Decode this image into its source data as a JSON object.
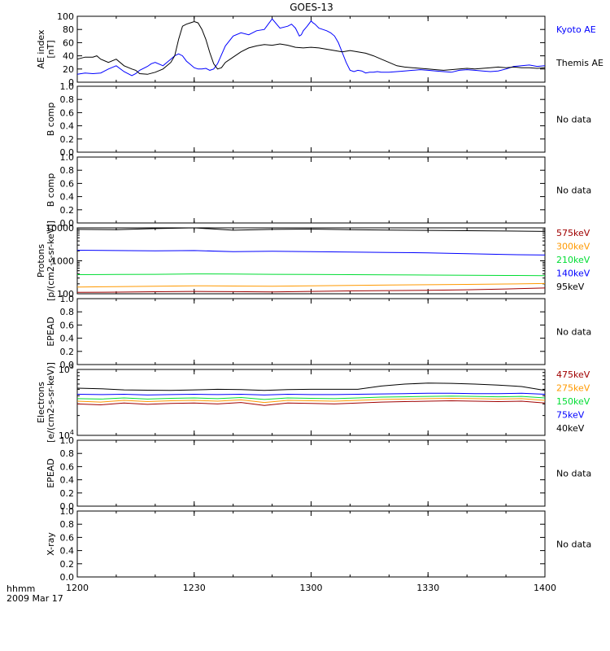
{
  "title": "GOES-13",
  "footer": {
    "time_label": "hhmm",
    "date_label": "2009 Mar 17"
  },
  "x_axis": {
    "ticks": [
      "1200",
      "1230",
      "1300",
      "1330",
      "1400"
    ],
    "tick_values": [
      0,
      30,
      60,
      90,
      120
    ],
    "range": [
      0,
      120
    ]
  },
  "chart_data": [
    {
      "type": "line",
      "panel": "ae",
      "ylabel": "AE index\n[nT]",
      "ylim": [
        0,
        100
      ],
      "yticks": [
        0,
        20,
        40,
        60,
        80,
        100
      ],
      "yscale": "linear",
      "x_units": "minutes after 1200",
      "series": [
        {
          "name": "Kyoto AE",
          "color": "#0000ff",
          "x": [
            0,
            2,
            4,
            6,
            8,
            10,
            12,
            14,
            15,
            16,
            18,
            19,
            20,
            22,
            23,
            24,
            25,
            26,
            27,
            28,
            29,
            30,
            31,
            32,
            33,
            34,
            35,
            36,
            38,
            40,
            42,
            44,
            46,
            48,
            50,
            52,
            54,
            55,
            56,
            57,
            57.5,
            58,
            59,
            60,
            60.5,
            61,
            62,
            63,
            64,
            65,
            66,
            67,
            68,
            69,
            70,
            71,
            72,
            73,
            74,
            75,
            76,
            77,
            78,
            80,
            82,
            84,
            86,
            88,
            90,
            92,
            94,
            96,
            98,
            100,
            102,
            104,
            106,
            108,
            110,
            112,
            114,
            116,
            118,
            120
          ],
          "values": [
            12,
            14,
            13,
            14,
            20,
            25,
            16,
            10,
            13,
            18,
            24,
            28,
            30,
            25,
            30,
            35,
            40,
            43,
            40,
            32,
            27,
            22,
            20,
            20,
            21,
            18,
            20,
            28,
            55,
            70,
            75,
            72,
            78,
            80,
            96,
            82,
            85,
            88,
            82,
            70,
            72,
            78,
            85,
            93,
            90,
            88,
            82,
            80,
            78,
            75,
            70,
            60,
            45,
            30,
            18,
            16,
            18,
            17,
            14,
            15,
            15,
            16,
            15,
            15,
            16,
            17,
            18,
            19,
            18,
            17,
            16,
            15,
            18,
            19,
            18,
            17,
            16,
            17,
            20,
            24,
            25,
            26,
            24,
            25
          ]
        },
        {
          "name": "Themis AE",
          "color": "#000000",
          "x": [
            0,
            2,
            4,
            5,
            6,
            8,
            10,
            12,
            14,
            15,
            16,
            18,
            20,
            22,
            24,
            25,
            26,
            27,
            28,
            29,
            30,
            31,
            32,
            33,
            34,
            35,
            36,
            37,
            38,
            40,
            42,
            44,
            46,
            48,
            50,
            52,
            54,
            56,
            58,
            60,
            62,
            64,
            66,
            68,
            70,
            72,
            74,
            76,
            78,
            80,
            82,
            84,
            86,
            88,
            90,
            92,
            94,
            96,
            98,
            100,
            102,
            104,
            106,
            108,
            110,
            112,
            114,
            116,
            118,
            120
          ],
          "values": [
            35,
            38,
            38,
            40,
            35,
            30,
            35,
            25,
            20,
            18,
            13,
            12,
            15,
            20,
            30,
            40,
            65,
            85,
            88,
            90,
            92,
            90,
            80,
            65,
            45,
            28,
            20,
            22,
            30,
            38,
            46,
            52,
            55,
            57,
            56,
            58,
            56,
            53,
            52,
            53,
            52,
            50,
            48,
            46,
            48,
            46,
            44,
            40,
            35,
            30,
            25,
            23,
            22,
            21,
            20,
            19,
            18,
            19,
            20,
            21,
            20,
            21,
            22,
            23,
            22,
            23,
            22,
            22,
            21,
            22
          ]
        }
      ]
    },
    {
      "type": "line",
      "panel": "b-comp-1",
      "ylabel": "B comp",
      "ylim": [
        0,
        1
      ],
      "yticks": [
        0.0,
        0.2,
        0.4,
        0.6,
        0.8,
        1.0
      ],
      "yscale": "linear",
      "series": [],
      "note": "No data"
    },
    {
      "type": "line",
      "panel": "b-comp-2",
      "ylabel": "B comp",
      "ylim": [
        0,
        1
      ],
      "yticks": [
        0.0,
        0.2,
        0.4,
        0.6,
        0.8,
        1.0
      ],
      "yscale": "linear",
      "series": [],
      "note": "No data"
    },
    {
      "type": "line",
      "panel": "protons",
      "ylabel": "Protons\n[p/(cm2-s-sr-keV)]",
      "ylim": [
        100,
        10000
      ],
      "yticks": [
        100,
        1000,
        10000
      ],
      "yscale": "log",
      "x_units": "minutes after 1200",
      "series": [
        {
          "name": "575keV",
          "color": "#a00000",
          "x": [
            0,
            10,
            20,
            30,
            40,
            50,
            60,
            70,
            80,
            90,
            100,
            110,
            120
          ],
          "values": [
            110,
            112,
            115,
            118,
            116,
            114,
            118,
            122,
            125,
            128,
            132,
            140,
            150
          ]
        },
        {
          "name": "300keV",
          "color": "#ff9900",
          "x": [
            0,
            10,
            20,
            30,
            40,
            50,
            60,
            70,
            80,
            90,
            100,
            110,
            120
          ],
          "values": [
            160,
            165,
            170,
            175,
            172,
            170,
            175,
            180,
            185,
            188,
            192,
            198,
            205
          ]
        },
        {
          "name": "210keV",
          "color": "#00dd33",
          "x": [
            0,
            10,
            20,
            30,
            40,
            50,
            60,
            70,
            80,
            90,
            100,
            110,
            120
          ],
          "values": [
            380,
            385,
            390,
            400,
            395,
            390,
            385,
            380,
            375,
            370,
            365,
            360,
            355
          ]
        },
        {
          "name": "140keV",
          "color": "#0000ff",
          "x": [
            0,
            10,
            20,
            30,
            40,
            50,
            60,
            70,
            80,
            90,
            100,
            110,
            120
          ],
          "values": [
            2100,
            2050,
            2000,
            2050,
            1900,
            1950,
            1900,
            1850,
            1800,
            1750,
            1650,
            1550,
            1500
          ]
        },
        {
          "name": "95keV",
          "color": "#000000",
          "x": [
            0,
            10,
            20,
            30,
            40,
            50,
            60,
            70,
            80,
            90,
            100,
            110,
            120
          ],
          "values": [
            9000,
            8800,
            9500,
            10000,
            8500,
            9000,
            9200,
            8800,
            8600,
            8400,
            8200,
            8000,
            7800
          ]
        }
      ]
    },
    {
      "type": "line",
      "panel": "epead-1",
      "ylabel": "EPEAD",
      "ylim": [
        0,
        1
      ],
      "yticks": [
        0.0,
        0.2,
        0.4,
        0.6,
        0.8,
        1.0
      ],
      "yscale": "linear",
      "series": [],
      "note": "No data"
    },
    {
      "type": "line",
      "panel": "electrons",
      "ylabel": "Electrons\n[e/(cm2-s-sr-keV)]",
      "ylim": [
        10000,
        100000
      ],
      "yticks": [
        10000,
        100000
      ],
      "ytick_labels": [
        "10^4",
        "10^5"
      ],
      "yscale": "log",
      "x_units": "minutes after 1200",
      "series": [
        {
          "name": "475keV",
          "color": "#a00000",
          "x": [
            0,
            6,
            12,
            18,
            24,
            30,
            36,
            42,
            48,
            54,
            60,
            66,
            72,
            78,
            84,
            90,
            96,
            102,
            108,
            114,
            120
          ],
          "values": [
            30000,
            29000,
            31000,
            29500,
            30500,
            31000,
            30000,
            31500,
            28500,
            31000,
            30500,
            30000,
            31000,
            32000,
            32500,
            33000,
            33500,
            33000,
            32500,
            33000,
            31000
          ]
        },
        {
          "name": "275keV",
          "color": "#ff9900",
          "x": [
            0,
            6,
            12,
            18,
            24,
            30,
            36,
            42,
            48,
            54,
            60,
            66,
            72,
            78,
            84,
            90,
            96,
            102,
            108,
            114,
            120
          ],
          "values": [
            33000,
            32000,
            34000,
            32500,
            33500,
            34000,
            33000,
            34500,
            31500,
            34000,
            33500,
            33000,
            34000,
            35000,
            35500,
            36000,
            36500,
            36000,
            35500,
            36000,
            34000
          ]
        },
        {
          "name": "150keV",
          "color": "#00dd33",
          "x": [
            0,
            6,
            12,
            18,
            24,
            30,
            36,
            42,
            48,
            54,
            60,
            66,
            72,
            78,
            84,
            90,
            96,
            102,
            108,
            114,
            120
          ],
          "values": [
            36000,
            35500,
            37000,
            35500,
            36500,
            37000,
            36000,
            37500,
            35000,
            37000,
            36500,
            36000,
            37000,
            38000,
            38500,
            39000,
            39500,
            39000,
            38500,
            39000,
            37000
          ]
        },
        {
          "name": "75keV",
          "color": "#0000ff",
          "x": [
            0,
            6,
            12,
            18,
            24,
            30,
            36,
            42,
            48,
            54,
            60,
            66,
            72,
            78,
            84,
            90,
            96,
            102,
            108,
            114,
            120
          ],
          "values": [
            42000,
            41500,
            42000,
            41000,
            41500,
            42000,
            41500,
            42000,
            41000,
            42000,
            41500,
            41500,
            42000,
            42500,
            43000,
            43500,
            43500,
            43000,
            43000,
            43500,
            42000
          ]
        },
        {
          "name": "40keV",
          "color": "#000000",
          "x": [
            0,
            6,
            12,
            18,
            24,
            30,
            36,
            42,
            48,
            54,
            60,
            66,
            72,
            78,
            84,
            90,
            96,
            102,
            108,
            114,
            120
          ],
          "values": [
            52000,
            51000,
            49000,
            48500,
            48000,
            49000,
            50000,
            49500,
            48000,
            49500,
            50000,
            50000,
            50000,
            56000,
            60000,
            62000,
            61500,
            60000,
            58000,
            55000,
            48000
          ]
        }
      ]
    },
    {
      "type": "line",
      "panel": "epead-2",
      "ylabel": "EPEAD",
      "ylim": [
        0,
        1
      ],
      "yticks": [
        0.0,
        0.2,
        0.4,
        0.6,
        0.8,
        1.0
      ],
      "yscale": "linear",
      "series": [],
      "note": "No data"
    },
    {
      "type": "line",
      "panel": "x-ray",
      "ylabel": "X-ray",
      "ylim": [
        0,
        1
      ],
      "yticks": [
        0.0,
        0.2,
        0.4,
        0.6,
        0.8,
        1.0
      ],
      "yscale": "linear",
      "series": [],
      "note": "No data"
    }
  ]
}
